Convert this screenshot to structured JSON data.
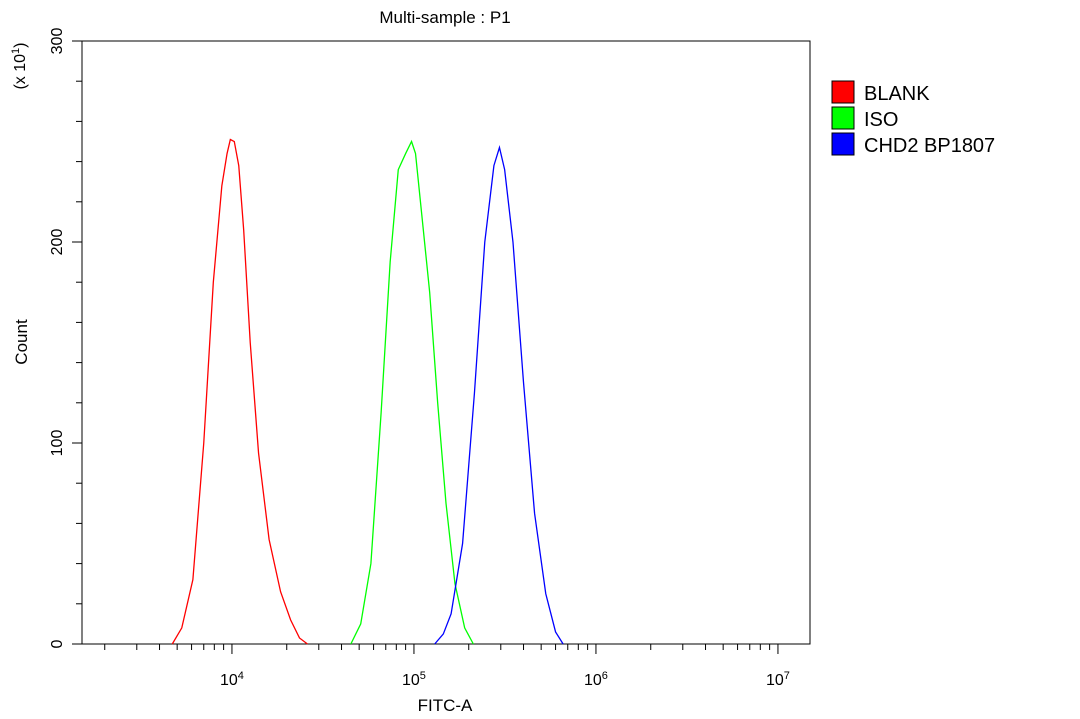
{
  "chart_data": {
    "type": "line",
    "title": "Multi-sample : P1",
    "xlabel": "FITC-A",
    "ylabel": "Count",
    "y_multiplier_label": "(x 10",
    "y_multiplier_exponent": "1",
    "y_multiplier_close": ")",
    "x_scale": "log",
    "xlim": [
      1500,
      15000000
    ],
    "ylim": [
      0,
      300
    ],
    "x_ticks": [
      {
        "base": "10",
        "exp": "4",
        "value": 10000
      },
      {
        "base": "10",
        "exp": "5",
        "value": 100000
      },
      {
        "base": "10",
        "exp": "6",
        "value": 1000000
      },
      {
        "base": "10",
        "exp": "7",
        "value": 10000000
      }
    ],
    "y_ticks": [
      {
        "label": "0",
        "value": 0
      },
      {
        "label": "100",
        "value": 100
      },
      {
        "label": "200",
        "value": 200
      },
      {
        "label": "300",
        "value": 300
      }
    ],
    "grid": false,
    "legend_position": "right-top",
    "series": [
      {
        "name": "BLANK",
        "color": "#ff0000",
        "points": [
          [
            4700,
            0
          ],
          [
            5300,
            8
          ],
          [
            6100,
            32
          ],
          [
            7000,
            100
          ],
          [
            7900,
            180
          ],
          [
            8800,
            228
          ],
          [
            9400,
            244
          ],
          [
            9800,
            251
          ],
          [
            10300,
            250
          ],
          [
            10900,
            238
          ],
          [
            11600,
            206
          ],
          [
            12600,
            150
          ],
          [
            14000,
            95
          ],
          [
            16000,
            52
          ],
          [
            18500,
            26
          ],
          [
            21000,
            12
          ],
          [
            23500,
            3
          ],
          [
            26000,
            0
          ]
        ]
      },
      {
        "name": "ISO",
        "color": "#00ff00",
        "points": [
          [
            45000,
            0
          ],
          [
            51000,
            10
          ],
          [
            58000,
            40
          ],
          [
            66000,
            115
          ],
          [
            74000,
            190
          ],
          [
            82000,
            236
          ],
          [
            90000,
            244
          ],
          [
            97000,
            250
          ],
          [
            102000,
            244
          ],
          [
            110000,
            215
          ],
          [
            122000,
            175
          ],
          [
            135000,
            120
          ],
          [
            150000,
            70
          ],
          [
            168000,
            30
          ],
          [
            190000,
            8
          ],
          [
            212000,
            0
          ]
        ]
      },
      {
        "name": "CHD2 BP1807",
        "color": "#0000ff",
        "points": [
          [
            130000,
            0
          ],
          [
            145000,
            5
          ],
          [
            160000,
            15
          ],
          [
            185000,
            50
          ],
          [
            215000,
            125
          ],
          [
            245000,
            200
          ],
          [
            275000,
            238
          ],
          [
            295000,
            247
          ],
          [
            315000,
            236
          ],
          [
            350000,
            200
          ],
          [
            400000,
            130
          ],
          [
            460000,
            65
          ],
          [
            530000,
            25
          ],
          [
            600000,
            6
          ],
          [
            660000,
            0
          ]
        ]
      }
    ]
  }
}
